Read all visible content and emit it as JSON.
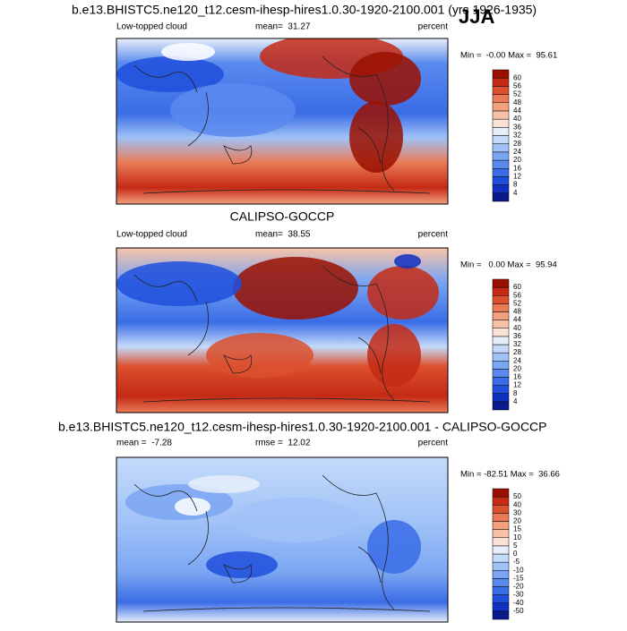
{
  "season": "JJA",
  "panels": [
    {
      "title": "b.e13.BHISTC5.ne120_t12.cesm-ihesp-hires1.0.30-1920-2100.001 (yrs 1926-1935)",
      "left": "Low-topped cloud",
      "center": "mean=  31.27",
      "right": "percent",
      "minmax": "Min =  -0.00 Max =  95.61",
      "colorbar": {
        "labels": [
          "4",
          "8",
          "12",
          "16",
          "20",
          "24",
          "28",
          "32",
          "36",
          "40",
          "44",
          "48",
          "52",
          "56",
          "60"
        ],
        "colors": [
          "#0a1a8c",
          "#1030c0",
          "#1f4fdc",
          "#3a6ce6",
          "#5a8aee",
          "#7ba6f3",
          "#a0c2f7",
          "#c4dafa",
          "#e6eefa",
          "#fbe2d6",
          "#f7c2a8",
          "#f2a07e",
          "#ea7a56",
          "#dc502e",
          "#c42a14",
          "#9a1000"
        ]
      }
    },
    {
      "title": "CALIPSO-GOCCP",
      "left": "Low-topped cloud",
      "center": "mean=  38.55",
      "right": "percent",
      "minmax": "Min =   0.00 Max =  95.94",
      "colorbar": {
        "labels": [
          "4",
          "8",
          "12",
          "16",
          "20",
          "24",
          "28",
          "32",
          "36",
          "40",
          "44",
          "48",
          "52",
          "56",
          "60"
        ],
        "colors": [
          "#0a1a8c",
          "#1030c0",
          "#1f4fdc",
          "#3a6ce6",
          "#5a8aee",
          "#7ba6f3",
          "#a0c2f7",
          "#c4dafa",
          "#e6eefa",
          "#fbe2d6",
          "#f7c2a8",
          "#f2a07e",
          "#ea7a56",
          "#dc502e",
          "#c42a14",
          "#9a1000"
        ]
      }
    },
    {
      "title": "b.e13.BHISTC5.ne120_t12.cesm-ihesp-hires1.0.30-1920-2100.001 - CALIPSO-GOCCP",
      "left": "mean =  -7.28",
      "center": "rmse =  12.02",
      "right": "percent",
      "minmax": "Min = -82.51 Max =  36.66",
      "colorbar": {
        "labels": [
          "-50",
          "-40",
          "-30",
          "-20",
          "-15",
          "-10",
          "-5",
          "0",
          "5",
          "10",
          "15",
          "20",
          "30",
          "40",
          "50"
        ],
        "colors": [
          "#0a1a8c",
          "#1030c0",
          "#1f4fdc",
          "#3a6ce6",
          "#5a8aee",
          "#7ba6f3",
          "#a0c2f7",
          "#c4dafa",
          "#e6eefa",
          "#fbe2d6",
          "#f7c2a8",
          "#f2a07e",
          "#ea7a56",
          "#dc502e",
          "#c42a14",
          "#9a1000"
        ]
      }
    }
  ]
}
